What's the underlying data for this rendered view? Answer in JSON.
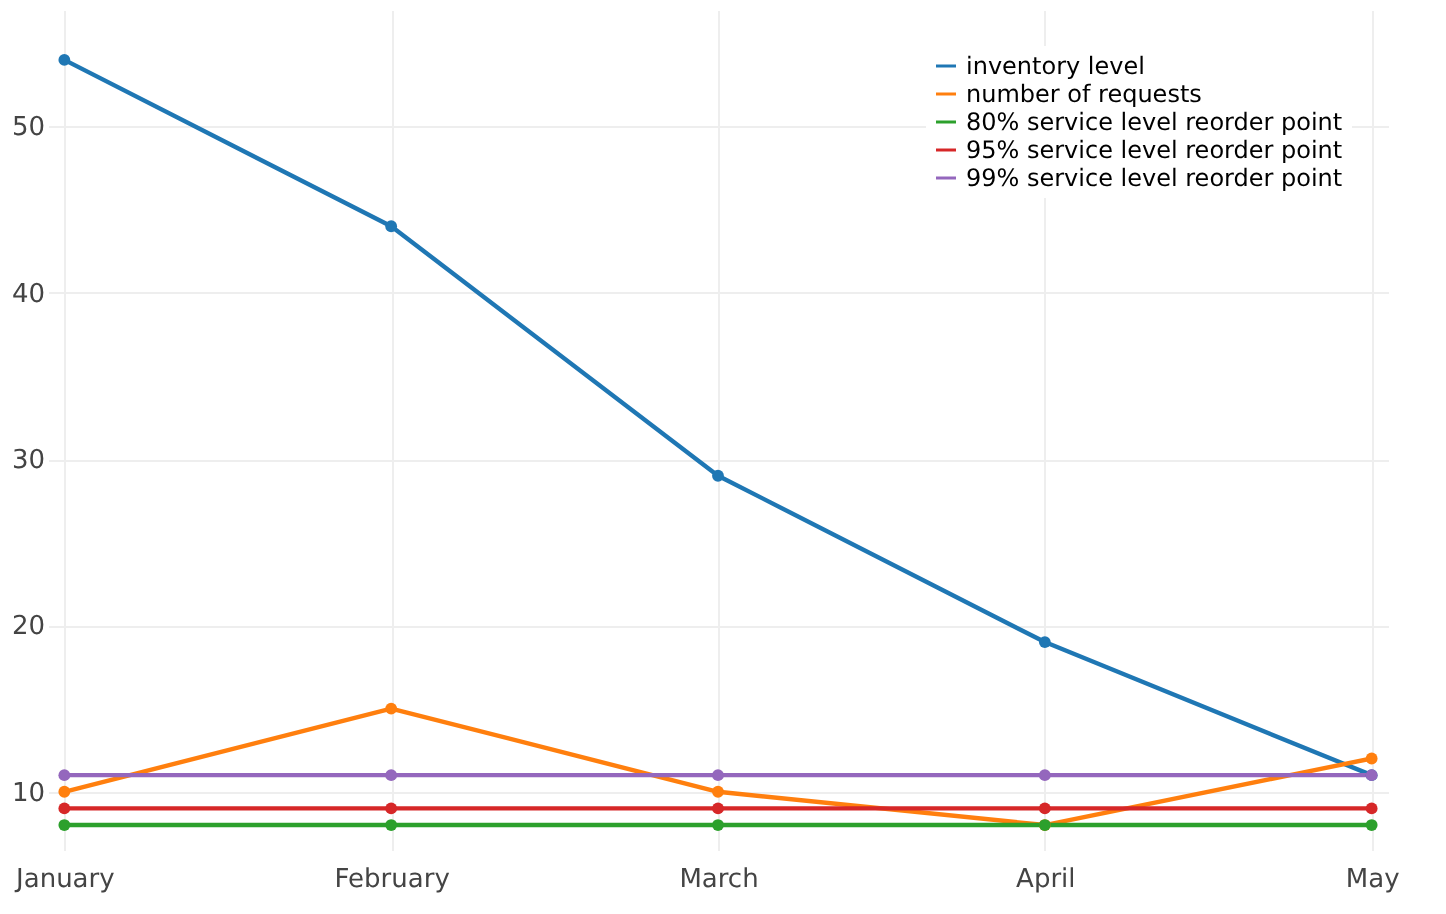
{
  "chart_data": {
    "type": "line",
    "categories": [
      "January",
      "February",
      "March",
      "April",
      "May"
    ],
    "series": [
      {
        "name": "inventory level",
        "color": "#1f77b4",
        "values": [
          54,
          44,
          29,
          19,
          11
        ]
      },
      {
        "name": "number of requests",
        "color": "#ff7f0e",
        "values": [
          10,
          15,
          10,
          8,
          12
        ]
      },
      {
        "name": "80% service level reorder point",
        "color": "#2ca02c",
        "values": [
          8,
          8,
          8,
          8,
          8
        ]
      },
      {
        "name": "95% service level reorder point",
        "color": "#d62728",
        "values": [
          9,
          9,
          9,
          9,
          9
        ]
      },
      {
        "name": "99% service level reorder point",
        "color": "#9467bd",
        "values": [
          11,
          11,
          11,
          11,
          11
        ]
      }
    ],
    "ylim": [
      6.5,
      57
    ],
    "yticks": [
      10,
      20,
      30,
      40,
      50
    ],
    "grid": true,
    "legend": "top right",
    "marker": "circle",
    "line_style": "solid"
  }
}
